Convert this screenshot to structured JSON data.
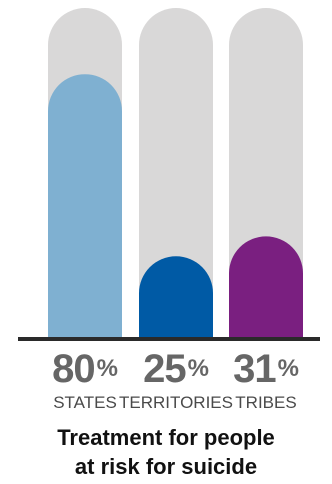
{
  "chart_data": {
    "type": "bar",
    "categories": [
      "STATES",
      "TERRITORIES",
      "TRIBES"
    ],
    "values": [
      80,
      25,
      31
    ],
    "value_suffix": "%",
    "ylim": [
      0,
      100
    ],
    "title_lines": [
      "Treatment for people",
      "at risk for suicide"
    ],
    "grid": false
  },
  "colors": {
    "track": "#d9d8d8",
    "baseline": "#2a2a2a",
    "bars": [
      "#7fb0d1",
      "#005aa5",
      "#7a1f80"
    ]
  }
}
